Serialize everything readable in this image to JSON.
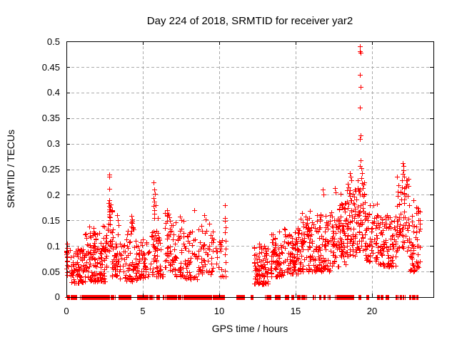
{
  "chart_data": {
    "type": "scatter",
    "title": "Day 224 of 2018, SRMTID for receiver yar2",
    "xlabel": "GPS time / hours",
    "ylabel": "SRMTID / TECUs",
    "xlim": [
      0,
      24
    ],
    "ylim": [
      0,
      0.5
    ],
    "xticks": [
      0,
      5,
      10,
      15,
      20
    ],
    "xtick_labels": [
      "0",
      "5",
      "10",
      "15",
      "20"
    ],
    "yticks": [
      0,
      0.05,
      0.1,
      0.15,
      0.2,
      0.25,
      0.3,
      0.35,
      0.4,
      0.45,
      0.5
    ],
    "ytick_labels": [
      "0",
      "0.05",
      "0.1",
      "0.15",
      "0.2",
      "0.25",
      "0.3",
      "0.35",
      "0.4",
      "0.45",
      "0.5"
    ],
    "grid": true,
    "grid_style": "dashed",
    "grid_color": "#aaaaaa",
    "border_color": "#000000",
    "legend": "none",
    "marker": {
      "shape": "plus",
      "color": "#ff0000",
      "size": 7
    },
    "seed": 7,
    "outlier_points": [
      [
        0.03,
        0.105
      ],
      [
        0.04,
        0.096
      ],
      [
        0.02,
        0.088
      ],
      [
        0.05,
        0.079
      ],
      [
        0.03,
        0.071
      ],
      [
        0.04,
        0.063
      ],
      [
        0.02,
        0.056
      ],
      [
        0.05,
        0.049
      ],
      [
        0.03,
        0.043
      ],
      [
        2.78,
        0.24
      ],
      [
        2.8,
        0.235
      ],
      [
        2.79,
        0.212
      ],
      [
        2.81,
        0.19
      ],
      [
        2.77,
        0.184
      ],
      [
        2.82,
        0.178
      ],
      [
        2.8,
        0.172
      ],
      [
        2.78,
        0.167
      ],
      [
        2.81,
        0.162
      ],
      [
        2.79,
        0.157
      ],
      [
        2.83,
        0.15
      ],
      [
        2.77,
        0.144
      ],
      [
        3.32,
        0.16
      ],
      [
        3.36,
        0.15
      ],
      [
        3.4,
        0.14
      ],
      [
        3.35,
        0.122
      ],
      [
        3.95,
        0.123
      ],
      [
        4.0,
        0.13
      ],
      [
        4.25,
        0.159
      ],
      [
        4.3,
        0.152
      ],
      [
        4.28,
        0.145
      ],
      [
        4.32,
        0.135
      ],
      [
        4.27,
        0.129
      ],
      [
        5.68,
        0.224
      ],
      [
        5.73,
        0.21
      ],
      [
        5.77,
        0.202
      ],
      [
        5.7,
        0.193
      ],
      [
        5.74,
        0.186
      ],
      [
        5.71,
        0.178
      ],
      [
        5.76,
        0.17
      ],
      [
        5.72,
        0.163
      ],
      [
        5.75,
        0.155
      ],
      [
        6.6,
        0.17
      ],
      [
        6.68,
        0.163
      ],
      [
        6.74,
        0.156
      ],
      [
        7.42,
        0.157
      ],
      [
        7.5,
        0.15
      ],
      [
        8.35,
        0.17
      ],
      [
        9.0,
        0.16
      ],
      [
        9.1,
        0.152
      ],
      [
        10.35,
        0.18
      ],
      [
        10.37,
        0.155
      ],
      [
        10.36,
        0.149
      ],
      [
        10.4,
        0.137
      ],
      [
        10.38,
        0.127
      ],
      [
        10.41,
        0.11
      ],
      [
        10.39,
        0.095
      ],
      [
        10.36,
        0.083
      ],
      [
        10.42,
        0.068
      ],
      [
        10.38,
        0.052
      ],
      [
        10.4,
        0.04
      ],
      [
        12.62,
        0.105
      ],
      [
        12.7,
        0.1
      ],
      [
        15.42,
        0.165
      ],
      [
        15.65,
        0.158
      ],
      [
        15.9,
        0.168
      ],
      [
        16.75,
        0.21
      ],
      [
        16.82,
        0.2
      ],
      [
        17.55,
        0.213
      ],
      [
        17.62,
        0.205
      ],
      [
        17.95,
        0.202
      ],
      [
        18.4,
        0.222
      ],
      [
        18.46,
        0.215
      ],
      [
        18.52,
        0.243
      ],
      [
        18.57,
        0.235
      ],
      [
        18.62,
        0.228
      ],
      [
        19.18,
        0.49
      ],
      [
        19.21,
        0.481
      ],
      [
        19.24,
        0.478
      ],
      [
        19.19,
        0.435
      ],
      [
        19.22,
        0.411
      ],
      [
        19.2,
        0.37
      ],
      [
        19.23,
        0.316
      ],
      [
        19.18,
        0.309
      ],
      [
        19.25,
        0.267
      ],
      [
        19.21,
        0.256
      ],
      [
        19.3,
        0.252
      ],
      [
        19.35,
        0.243
      ],
      [
        19.28,
        0.232
      ],
      [
        21.97,
        0.262
      ],
      [
        22.02,
        0.256
      ],
      [
        22.06,
        0.248
      ],
      [
        22.0,
        0.241
      ],
      [
        22.09,
        0.236
      ],
      [
        21.93,
        0.229
      ],
      [
        22.7,
        0.19
      ],
      [
        22.88,
        0.176
      ],
      [
        23.0,
        0.15
      ]
    ],
    "clusters": [
      [
        0.2,
        1.15,
        0.028,
        0.095,
        80,
        1.6
      ],
      [
        1.15,
        2.65,
        0.03,
        0.125,
        140,
        1.5
      ],
      [
        1.5,
        2.6,
        0.115,
        0.145,
        10,
        1.2
      ],
      [
        2.7,
        3.05,
        0.09,
        0.2,
        24,
        1.3
      ],
      [
        2.95,
        3.45,
        0.04,
        0.105,
        36,
        1.5
      ],
      [
        3.45,
        4.6,
        0.03,
        0.115,
        65,
        1.6
      ],
      [
        4.2,
        4.45,
        0.12,
        0.155,
        7,
        1.2
      ],
      [
        4.6,
        5.35,
        0.035,
        0.115,
        50,
        1.5
      ],
      [
        5.55,
        6.0,
        0.09,
        0.19,
        18,
        1.3
      ],
      [
        5.35,
        6.35,
        0.04,
        0.12,
        46,
        1.5
      ],
      [
        6.4,
        7.05,
        0.05,
        0.165,
        46,
        1.4
      ],
      [
        7.05,
        7.75,
        0.04,
        0.15,
        44,
        1.5
      ],
      [
        7.75,
        8.6,
        0.035,
        0.13,
        44,
        1.5
      ],
      [
        8.6,
        9.6,
        0.045,
        0.155,
        55,
        1.4
      ],
      [
        9.6,
        10.3,
        0.04,
        0.115,
        18,
        1.5
      ],
      [
        12.25,
        13.2,
        0.025,
        0.1,
        90,
        1.4
      ],
      [
        13.35,
        14.2,
        0.04,
        0.13,
        75,
        1.5
      ],
      [
        14.2,
        15.3,
        0.045,
        0.14,
        85,
        1.4
      ],
      [
        15.3,
        16.3,
        0.05,
        0.155,
        80,
        1.4
      ],
      [
        16.3,
        17.3,
        0.05,
        0.165,
        85,
        1.4
      ],
      [
        17.3,
        18.3,
        0.06,
        0.185,
        90,
        1.35
      ],
      [
        18.3,
        19.0,
        0.08,
        0.215,
        65,
        1.2
      ],
      [
        19.0,
        19.55,
        0.09,
        0.23,
        55,
        1.2
      ],
      [
        19.55,
        20.4,
        0.07,
        0.185,
        65,
        1.35
      ],
      [
        20.4,
        21.6,
        0.06,
        0.16,
        90,
        1.4
      ],
      [
        21.6,
        22.45,
        0.09,
        0.235,
        70,
        1.25
      ],
      [
        22.45,
        23.15,
        0.05,
        0.185,
        55,
        1.4
      ],
      [
        0.0,
        0.12,
        0.04,
        0.105,
        8,
        1.2
      ]
    ],
    "baseline_segments": [
      [
        0.05,
        0.2
      ],
      [
        0.25,
        0.38
      ],
      [
        0.42,
        0.65
      ],
      [
        0.9,
        1.02
      ],
      [
        1.1,
        1.55
      ],
      [
        1.6,
        1.98
      ],
      [
        2.02,
        2.5
      ],
      [
        2.55,
        2.78
      ],
      [
        2.9,
        3.05
      ],
      [
        3.1,
        3.18
      ],
      [
        3.42,
        3.72
      ],
      [
        3.76,
        3.97
      ],
      [
        4.02,
        4.18
      ],
      [
        4.6,
        4.78
      ],
      [
        4.82,
        5.32
      ],
      [
        5.4,
        5.52
      ],
      [
        5.56,
        5.68
      ],
      [
        5.9,
        6.1
      ],
      [
        6.28,
        6.42
      ],
      [
        6.55,
        6.64
      ],
      [
        6.7,
        7.2
      ],
      [
        7.3,
        7.46
      ],
      [
        7.55,
        7.68
      ],
      [
        7.72,
        8.25
      ],
      [
        8.32,
        8.5
      ],
      [
        8.56,
        9.0
      ],
      [
        9.05,
        9.45
      ],
      [
        9.5,
        9.62
      ],
      [
        9.67,
        9.88
      ],
      [
        9.94,
        10.1
      ],
      [
        10.15,
        10.32
      ],
      [
        11.12,
        11.34
      ],
      [
        11.4,
        11.62
      ],
      [
        12.05,
        12.2
      ],
      [
        13.0,
        13.1
      ],
      [
        13.16,
        13.35
      ],
      [
        13.65,
        13.95
      ],
      [
        14.3,
        14.52
      ],
      [
        14.7,
        14.86
      ],
      [
        15.1,
        15.26
      ],
      [
        15.36,
        15.5
      ],
      [
        15.56,
        15.66
      ],
      [
        16.1,
        16.22
      ],
      [
        16.54,
        16.64
      ],
      [
        16.8,
        16.92
      ],
      [
        17.1,
        17.22
      ],
      [
        17.54,
        17.76
      ],
      [
        17.8,
        18.1
      ],
      [
        18.16,
        18.56
      ],
      [
        18.6,
        18.76
      ],
      [
        19.1,
        19.26
      ],
      [
        19.6,
        19.74
      ],
      [
        20.3,
        20.44
      ],
      [
        20.55,
        20.7
      ],
      [
        20.9,
        21.06
      ],
      [
        21.5,
        21.64
      ],
      [
        21.74,
        21.9
      ],
      [
        21.96,
        22.1
      ],
      [
        22.4,
        22.52
      ],
      [
        22.6,
        22.78
      ],
      [
        22.86,
        22.96
      ]
    ]
  }
}
